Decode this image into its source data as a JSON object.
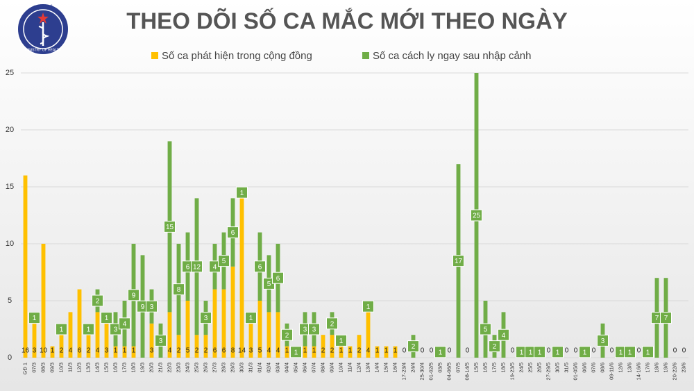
{
  "logo": {
    "top": "BỘ Y TẾ",
    "bottom": "MINISTRY OF HEALTH"
  },
  "chart_data": {
    "type": "stacked_bar",
    "title": "THEO DÕI SỐ CA MẮC MỚI THEO NGÀY",
    "categories": [
      "GĐ 1",
      "07/3",
      "08/3",
      "09/3",
      "10/3",
      "11/3",
      "12/3",
      "13/3",
      "14/3",
      "15/3",
      "16/3",
      "17/3",
      "18/3",
      "19/3",
      "20/3",
      "21/3",
      "22/3",
      "23/3",
      "24/3",
      "25/3",
      "26/3",
      "27/3",
      "28/3",
      "29/3",
      "30/3",
      "31/3",
      "01/4",
      "02/4",
      "03/4",
      "04/4",
      "05/4",
      "06/4",
      "07/4",
      "08/4",
      "09/4",
      "10/4",
      "11/4",
      "12/4",
      "13/4",
      "14/4",
      "15/4",
      "16/4",
      "17-23/4",
      "24/4",
      "25-30/4",
      "01-02/5",
      "03/5",
      "04-06/5",
      "07/5",
      "08-14/5",
      "15/5",
      "16/5",
      "17/5",
      "18/5",
      "19-23/5",
      "24/5",
      "25/5",
      "26/5",
      "27-29/5",
      "30/5",
      "31/5",
      "01-05/6",
      "06/6",
      "07/6",
      "08/6",
      "09-11/6",
      "12/6",
      "13/6",
      "14-16/6",
      "17/6",
      "18/6",
      "19/6",
      "20-22/6",
      "23/6"
    ],
    "series": [
      {
        "name": "Số ca phát hiện trong cộng đồng",
        "color": "#ffc000",
        "values": [
          16,
          3,
          10,
          1,
          2,
          4,
          6,
          2,
          4,
          3,
          1,
          1,
          1,
          0,
          3,
          0,
          4,
          2,
          5,
          2,
          2,
          6,
          6,
          8,
          14,
          3,
          5,
          4,
          4,
          1,
          0,
          1,
          1,
          2,
          2,
          1,
          1,
          2,
          4,
          1,
          1,
          1,
          0,
          0,
          0,
          0,
          0,
          0,
          0,
          0,
          0,
          0,
          0,
          0,
          0,
          0,
          0,
          0,
          0,
          0,
          0,
          0,
          0,
          0,
          0,
          0,
          0,
          0,
          0,
          0,
          0,
          0,
          0,
          0
        ]
      },
      {
        "name": "Số ca cách ly ngay sau nhập cảnh",
        "color": "#70ad47",
        "values": [
          0,
          1,
          0,
          0,
          1,
          0,
          0,
          1,
          2,
          1,
          3,
          4,
          9,
          9,
          3,
          3,
          15,
          8,
          6,
          12,
          3,
          4,
          5,
          6,
          1,
          1,
          6,
          5,
          6,
          2,
          1,
          3,
          3,
          0,
          2,
          1,
          0,
          0,
          1,
          0,
          0,
          0,
          0,
          2,
          0,
          0,
          1,
          0,
          17,
          0,
          25,
          5,
          2,
          4,
          0,
          1,
          1,
          1,
          0,
          1,
          0,
          0,
          1,
          0,
          3,
          0,
          1,
          1,
          0,
          1,
          7,
          7,
          0,
          0
        ]
      }
    ],
    "ylim": [
      0,
      25
    ],
    "yticks": [
      0,
      5,
      10,
      15,
      20,
      25
    ],
    "grid": true
  }
}
